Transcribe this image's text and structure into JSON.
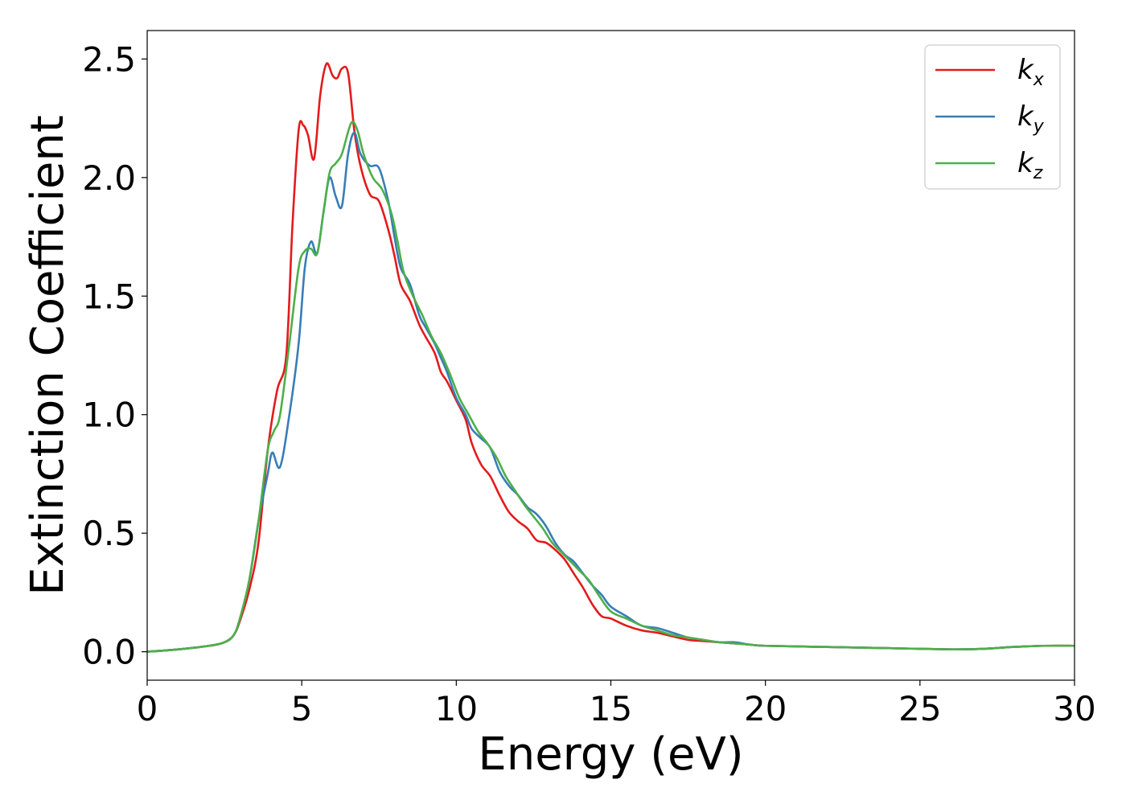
{
  "chart_data": {
    "type": "line",
    "title": "",
    "xlabel": "Energy (eV)",
    "ylabel": "Extinction Coefficient",
    "xlim": [
      0,
      30
    ],
    "ylim": [
      -0.12,
      2.62
    ],
    "xticks": [
      0,
      5,
      10,
      15,
      20,
      25,
      30
    ],
    "xtick_labels": [
      "0",
      "5",
      "10",
      "15",
      "20",
      "25",
      "30"
    ],
    "yticks": [
      0.0,
      0.5,
      1.0,
      1.5,
      2.0,
      2.5
    ],
    "ytick_labels": [
      "0.0",
      "0.5",
      "1.0",
      "1.5",
      "2.0",
      "2.5"
    ],
    "grid": false,
    "legend_position": "top-right",
    "series": [
      {
        "name": "kx",
        "legend_base": "k",
        "legend_sub": "x",
        "color": "#e41a1c",
        "x": [
          0,
          1,
          2,
          2.5,
          2.8,
          3.0,
          3.3,
          3.6,
          3.9,
          4.2,
          4.5,
          4.7,
          4.9,
          5.05,
          5.2,
          5.4,
          5.6,
          5.8,
          6.0,
          6.15,
          6.3,
          6.5,
          6.7,
          6.9,
          7.2,
          7.5,
          7.8,
          8.0,
          8.2,
          8.5,
          8.8,
          9.0,
          9.3,
          9.5,
          9.7,
          10.0,
          10.3,
          10.5,
          10.8,
          11.1,
          11.4,
          11.7,
          12.0,
          12.3,
          12.6,
          12.9,
          13.2,
          13.5,
          13.8,
          14.1,
          14.4,
          14.7,
          15.0,
          15.5,
          16.0,
          16.5,
          17.0,
          17.5,
          18.0,
          18.5,
          19.0,
          19.5,
          20,
          22,
          24,
          26,
          27,
          28,
          29,
          30
        ],
        "y": [
          0.0,
          0.01,
          0.025,
          0.04,
          0.07,
          0.13,
          0.26,
          0.46,
          0.85,
          1.1,
          1.25,
          1.8,
          2.2,
          2.22,
          2.18,
          2.08,
          2.35,
          2.48,
          2.43,
          2.42,
          2.46,
          2.44,
          2.2,
          2.05,
          1.93,
          1.9,
          1.78,
          1.67,
          1.55,
          1.48,
          1.38,
          1.33,
          1.26,
          1.18,
          1.14,
          1.06,
          0.98,
          0.88,
          0.79,
          0.74,
          0.66,
          0.59,
          0.55,
          0.52,
          0.47,
          0.46,
          0.43,
          0.39,
          0.33,
          0.27,
          0.2,
          0.15,
          0.14,
          0.11,
          0.09,
          0.08,
          0.065,
          0.05,
          0.045,
          0.04,
          0.035,
          0.03,
          0.025,
          0.02,
          0.015,
          0.01,
          0.012,
          0.02,
          0.025,
          0.025
        ]
      },
      {
        "name": "ky",
        "legend_base": "k",
        "legend_sub": "y",
        "color": "#377eb8",
        "x": [
          0,
          1,
          2,
          2.5,
          2.8,
          3.0,
          3.3,
          3.6,
          3.9,
          4.05,
          4.3,
          4.6,
          4.9,
          5.1,
          5.3,
          5.5,
          5.7,
          5.9,
          6.1,
          6.3,
          6.5,
          6.7,
          6.9,
          7.2,
          7.5,
          7.8,
          8.0,
          8.2,
          8.5,
          8.8,
          9.0,
          9.3,
          9.5,
          9.7,
          10.0,
          10.3,
          10.5,
          10.8,
          11.1,
          11.4,
          11.7,
          12.0,
          12.3,
          12.6,
          12.9,
          13.2,
          13.5,
          13.8,
          14.1,
          14.4,
          14.7,
          15.0,
          15.5,
          16.0,
          16.5,
          17.0,
          17.5,
          18.0,
          18.5,
          19.0,
          19.5,
          20,
          22,
          24,
          26,
          27,
          28,
          29,
          30
        ],
        "y": [
          0.0,
          0.01,
          0.025,
          0.04,
          0.07,
          0.14,
          0.3,
          0.55,
          0.75,
          0.84,
          0.78,
          1.0,
          1.3,
          1.62,
          1.73,
          1.68,
          1.85,
          2.0,
          1.92,
          1.88,
          2.1,
          2.19,
          2.1,
          2.05,
          2.04,
          1.9,
          1.75,
          1.62,
          1.55,
          1.42,
          1.37,
          1.3,
          1.24,
          1.18,
          1.07,
          1.0,
          0.94,
          0.9,
          0.86,
          0.76,
          0.7,
          0.66,
          0.61,
          0.58,
          0.53,
          0.46,
          0.41,
          0.38,
          0.33,
          0.28,
          0.24,
          0.19,
          0.15,
          0.11,
          0.1,
          0.08,
          0.06,
          0.05,
          0.04,
          0.04,
          0.03,
          0.025,
          0.02,
          0.015,
          0.01,
          0.012,
          0.02,
          0.025,
          0.025
        ]
      },
      {
        "name": "kz",
        "legend_base": "k",
        "legend_sub": "z",
        "color": "#4daf4a",
        "x": [
          0,
          1,
          2,
          2.5,
          2.8,
          3.0,
          3.3,
          3.6,
          3.9,
          4.1,
          4.3,
          4.6,
          4.9,
          5.1,
          5.3,
          5.5,
          5.7,
          5.9,
          6.1,
          6.3,
          6.6,
          6.8,
          7.0,
          7.3,
          7.6,
          7.9,
          8.1,
          8.3,
          8.6,
          8.9,
          9.2,
          9.5,
          9.8,
          10.1,
          10.4,
          10.7,
          11.0,
          11.3,
          11.6,
          11.9,
          12.2,
          12.5,
          12.8,
          13.1,
          13.4,
          13.7,
          14.0,
          14.3,
          14.6,
          15.0,
          15.5,
          16.0,
          16.5,
          17.0,
          17.5,
          18.0,
          18.5,
          19.0,
          19.5,
          20,
          22,
          24,
          26,
          27,
          28,
          29,
          30
        ],
        "y": [
          0.0,
          0.01,
          0.025,
          0.04,
          0.07,
          0.14,
          0.3,
          0.55,
          0.85,
          0.93,
          1.0,
          1.3,
          1.62,
          1.69,
          1.7,
          1.68,
          1.85,
          2.02,
          2.06,
          2.1,
          2.23,
          2.2,
          2.1,
          2.0,
          1.95,
          1.85,
          1.73,
          1.6,
          1.5,
          1.42,
          1.33,
          1.26,
          1.17,
          1.07,
          1.0,
          0.93,
          0.88,
          0.82,
          0.74,
          0.68,
          0.62,
          0.57,
          0.52,
          0.46,
          0.42,
          0.38,
          0.34,
          0.3,
          0.24,
          0.17,
          0.14,
          0.11,
          0.09,
          0.07,
          0.06,
          0.05,
          0.04,
          0.035,
          0.03,
          0.025,
          0.02,
          0.015,
          0.01,
          0.012,
          0.02,
          0.025,
          0.025
        ]
      }
    ]
  }
}
